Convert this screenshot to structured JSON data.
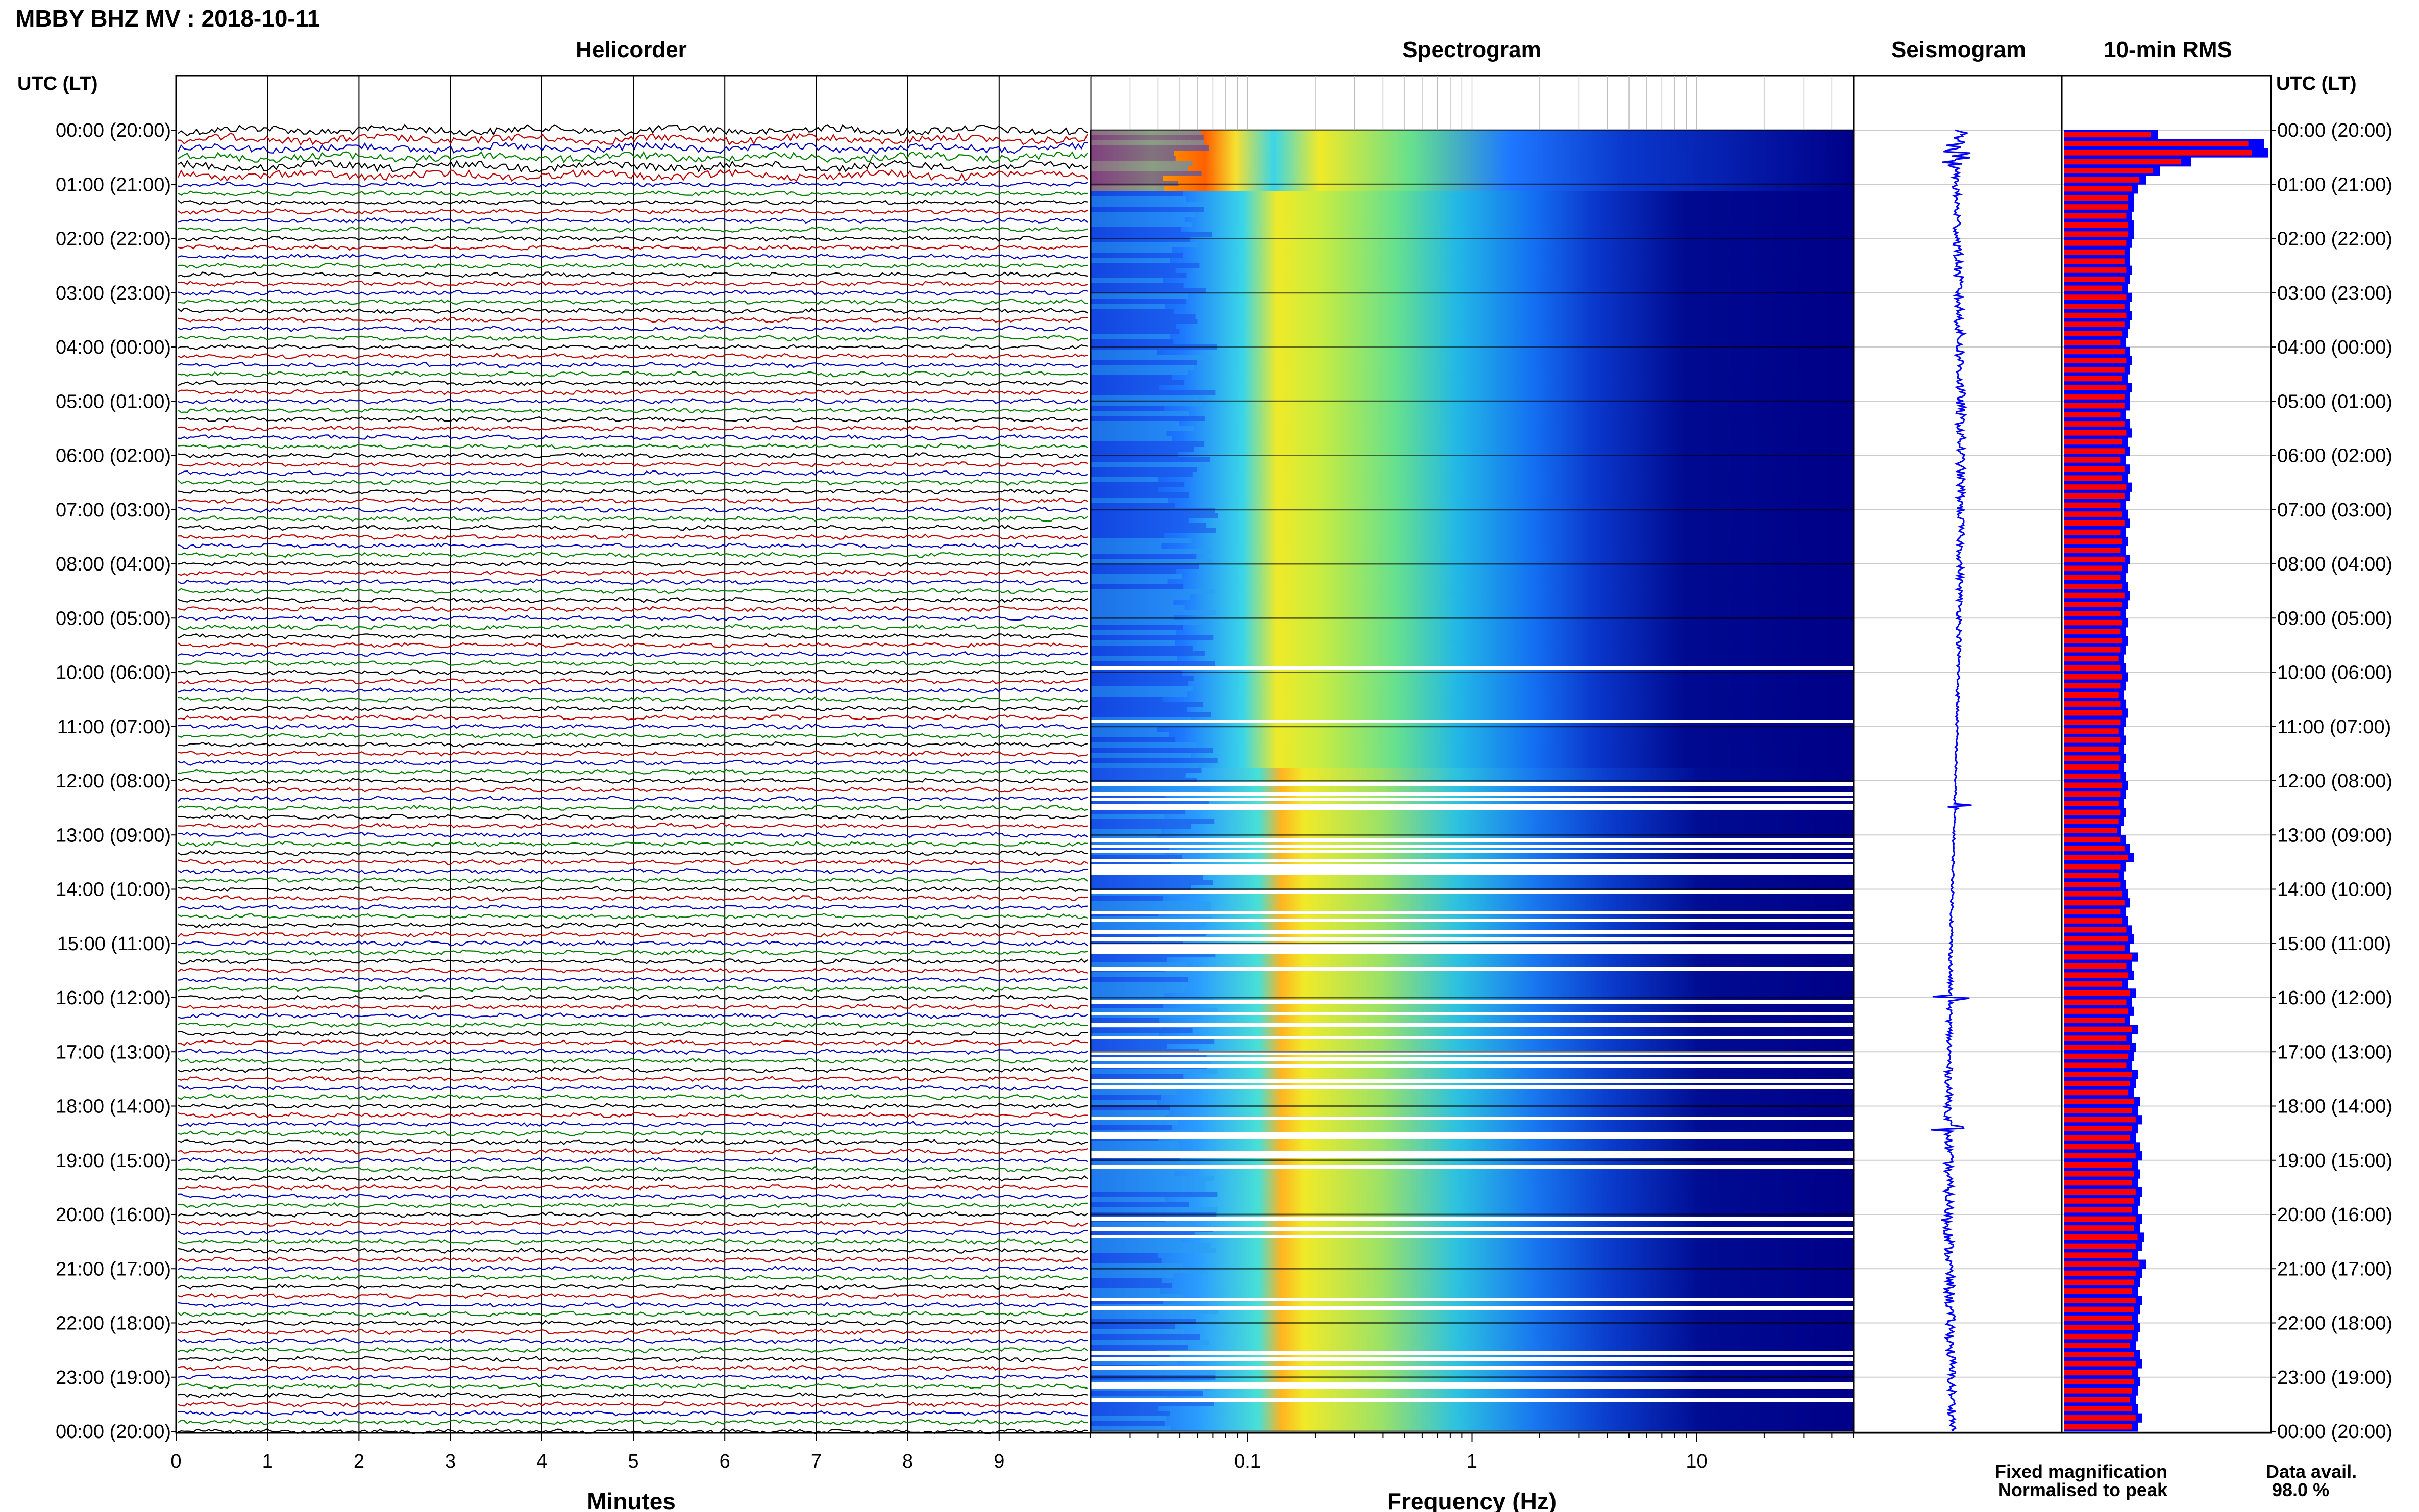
{
  "header": {
    "title": "MBBY BHZ MV : 2018-10-11",
    "left_axis_title": "UTC (LT)",
    "right_axis_title": "UTC (LT)"
  },
  "panels": {
    "helicorder": "Helicorder",
    "spectrogram": "Spectrogram",
    "seismogram": "Seismogram",
    "rms": "10-min RMS"
  },
  "footer": {
    "minutes_label": "Minutes",
    "frequency_label": "Frequency (Hz)",
    "legend_fixed": "Fixed magnification",
    "legend_normalised": "Normalised to peak",
    "data_avail_label": "Data avail.",
    "data_avail_value": "98.0 %"
  },
  "colors": {
    "trace_cycle": [
      "#000000",
      "#c00000",
      "#0000c0",
      "#008000"
    ],
    "rms_fixed": "#0000ff",
    "rms_normalised": "#ff0000",
    "seismogram": "#0000ff",
    "legend_fixed": "#0000ff",
    "legend_normalised": "#ff0000"
  },
  "chart_data": {
    "type": "heatmap",
    "time_labels": [
      "00:00 (20:00)",
      "01:00 (21:00)",
      "02:00 (22:00)",
      "03:00 (23:00)",
      "04:00 (00:00)",
      "05:00 (01:00)",
      "06:00 (02:00)",
      "07:00 (03:00)",
      "08:00 (04:00)",
      "09:00 (05:00)",
      "10:00 (06:00)",
      "11:00 (07:00)",
      "12:00 (08:00)",
      "13:00 (09:00)",
      "14:00 (10:00)",
      "15:00 (11:00)",
      "16:00 (12:00)",
      "17:00 (13:00)",
      "18:00 (14:00)",
      "19:00 (15:00)",
      "20:00 (16:00)",
      "21:00 (17:00)",
      "22:00 (18:00)",
      "23:00 (19:00)",
      "00:00 (20:00)"
    ],
    "helicorder": {
      "x_ticks": [
        "0",
        "1",
        "2",
        "3",
        "4",
        "5",
        "6",
        "7",
        "8",
        "9"
      ],
      "xlim": [
        0,
        10
      ],
      "lines_per_hour": 6
    },
    "spectrogram": {
      "x_ticks": [
        "0.1",
        "1",
        "10"
      ],
      "x_tick_values": [
        0.1,
        1,
        10
      ],
      "xlim": [
        0.02,
        50
      ],
      "log_x": true
    },
    "rms": {
      "fixed": [
        0.46,
        0.98,
        1.0,
        0.62,
        0.47,
        0.4,
        0.36,
        0.34,
        0.34,
        0.33,
        0.34,
        0.34,
        0.33,
        0.32,
        0.32,
        0.33,
        0.32,
        0.31,
        0.33,
        0.32,
        0.33,
        0.32,
        0.31,
        0.3,
        0.32,
        0.33,
        0.32,
        0.31,
        0.33,
        0.32,
        0.32,
        0.3,
        0.32,
        0.33,
        0.31,
        0.32,
        0.3,
        0.32,
        0.31,
        0.33,
        0.32,
        0.3,
        0.31,
        0.32,
        0.3,
        0.31,
        0.3,
        0.32,
        0.31,
        0.3,
        0.31,
        0.32,
        0.31,
        0.3,
        0.31,
        0.3,
        0.31,
        0.3,
        0.29,
        0.3,
        0.31,
        0.3,
        0.29,
        0.3,
        0.31,
        0.3,
        0.29,
        0.3,
        0.29,
        0.3,
        0.29,
        0.3,
        0.31,
        0.3,
        0.29,
        0.3,
        0.29,
        0.28,
        0.3,
        0.32,
        0.34,
        0.3,
        0.29,
        0.3,
        0.31,
        0.32,
        0.3,
        0.31,
        0.33,
        0.34,
        0.32,
        0.36,
        0.33,
        0.34,
        0.31,
        0.35,
        0.33,
        0.34,
        0.32,
        0.36,
        0.33,
        0.35,
        0.34,
        0.33,
        0.36,
        0.35,
        0.34,
        0.37,
        0.36,
        0.38,
        0.36,
        0.35,
        0.37,
        0.38,
        0.36,
        0.37,
        0.36,
        0.38,
        0.37,
        0.36,
        0.38,
        0.37,
        0.39,
        0.38,
        0.36,
        0.4,
        0.38,
        0.37,
        0.36,
        0.38,
        0.37,
        0.36,
        0.37,
        0.36,
        0.35,
        0.37,
        0.38,
        0.36,
        0.37,
        0.36,
        0.35,
        0.36,
        0.38,
        0.36
      ],
      "normalised_scale": 0.92
    },
    "data_availability_percent": 98.0
  }
}
